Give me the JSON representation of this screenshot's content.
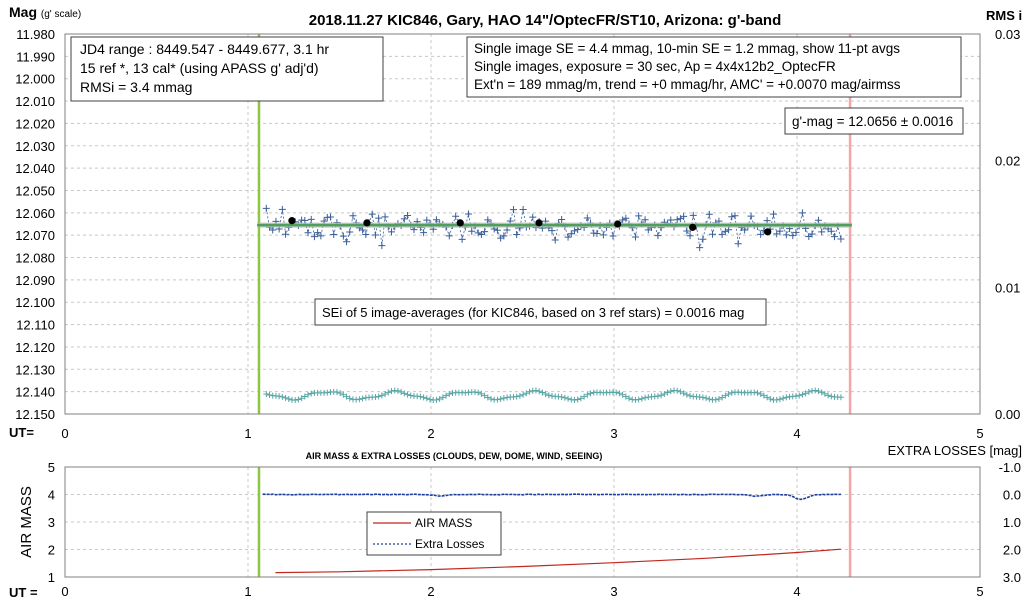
{
  "chart_data": [
    {
      "type": "scatter",
      "title": "2018.11.27 KIC846, Gary, HAO 14\"/OptecFR/ST10, Arizona: g'-band",
      "ylabel_left": "Mag (g' scale)",
      "ylabel_right": "RMS i",
      "xlabel": "UT=",
      "x_ticks": [
        "0",
        "1",
        "2",
        "3",
        "4",
        "5"
      ],
      "xlim": [
        0,
        5
      ],
      "y_ticks": [
        "11.980",
        "11.990",
        "12.000",
        "12.010",
        "12.020",
        "12.030",
        "12.040",
        "12.050",
        "12.060",
        "12.070",
        "12.080",
        "12.090",
        "12.100",
        "12.110",
        "12.120",
        "12.130",
        "12.140",
        "12.150"
      ],
      "ylim": [
        12.15,
        11.98
      ],
      "y2_ticks": [
        "0.03",
        "0.02",
        "0.01",
        "0.00"
      ],
      "y2lim": [
        0,
        0.03
      ],
      "grid": true,
      "vlines": [
        {
          "x": 1.06,
          "color": "#8dc63f"
        },
        {
          "x": 4.29,
          "color": "#f4a6a6"
        }
      ],
      "fit_line": {
        "x": [
          1.05,
          4.3
        ],
        "y": [
          12.0655,
          12.0655
        ],
        "color": "#4e9f5c"
      },
      "averages": {
        "x": [
          1.24,
          1.65,
          2.16,
          2.59,
          3.02,
          3.43,
          3.84
        ],
        "y": [
          12.0635,
          12.0645,
          12.0645,
          12.0645,
          12.065,
          12.0665,
          12.0685
        ]
      },
      "single_images": {
        "seed": 846,
        "count": 180,
        "x_start": 1.1,
        "x_end": 4.24,
        "mean": 12.066,
        "sd": 0.0045,
        "color": "#3a5f9a"
      },
      "rms_points": {
        "count": 180,
        "x_start": 1.1,
        "x_end": 4.24,
        "mean": 12.1417,
        "amp": 0.0017,
        "color": "#5aa6a6"
      },
      "annotations": {
        "box1": [
          "JD4 range : 8449.547 - 8449.677,  3.1  hr",
          "15 ref *, 13 cal* (using APASS g' adj'd)",
          "RMSi = 3.4 mmag"
        ],
        "box2": [
          "Single image SE = 4.4 mmag, 10-min SE = 1.2 mmag, show  11-pt avgs",
          "Single images, exposure = 30 sec, Ap = 4x4x12b2_OptecFR",
          "Ext'n = 189 mmag/m, trend =  +0 mmag/hr, AMC' = +0.0070 mag/airmss"
        ],
        "box3": "g'-mag = 12.0656 ± 0.0016",
        "box4": "SEi of 5 image-averages (for KIC846, based on 3 ref stars) = 0.0016 mag"
      }
    },
    {
      "type": "line",
      "title": "AIR MASS & EXTRA LOSSES (CLOUDS, DEW, DOME, WIND, SEEING)",
      "ylabel_left": "AIR MASS",
      "ylabel_right": "EXTRA LOSSES [mag]",
      "xlabel": "UT =",
      "x_ticks": [
        "0",
        "1",
        "2",
        "3",
        "4",
        "5"
      ],
      "xlim": [
        0,
        5
      ],
      "y_ticks": [
        "5",
        "4",
        "3",
        "2",
        "1"
      ],
      "ylim": [
        1,
        5
      ],
      "y2_ticks": [
        "-1.0",
        "0.0",
        "1.0",
        "2.0",
        "3.0"
      ],
      "y2lim": [
        -1,
        3
      ],
      "grid": true,
      "vlines": [
        {
          "x": 1.06,
          "color": "#8dc63f"
        },
        {
          "x": 4.29,
          "color": "#f4a6a6"
        }
      ],
      "series": [
        {
          "name": "AIR MASS",
          "color": "#c0281e",
          "x": [
            1.15,
            1.5,
            2.0,
            2.5,
            3.0,
            3.5,
            4.0,
            4.24
          ],
          "y": [
            1.16,
            1.19,
            1.27,
            1.38,
            1.52,
            1.68,
            1.89,
            2.01
          ]
        },
        {
          "name": "Extra Losses",
          "color": "#1f3f9f",
          "x_start": 1.08,
          "x_end": 4.24,
          "base": 0.0,
          "dips": [
            {
              "x": 4.02,
              "y": 0.18
            },
            {
              "x": 3.78,
              "y": 0.06
            },
            {
              "x": 2.05,
              "y": 0.05
            }
          ]
        }
      ]
    }
  ]
}
